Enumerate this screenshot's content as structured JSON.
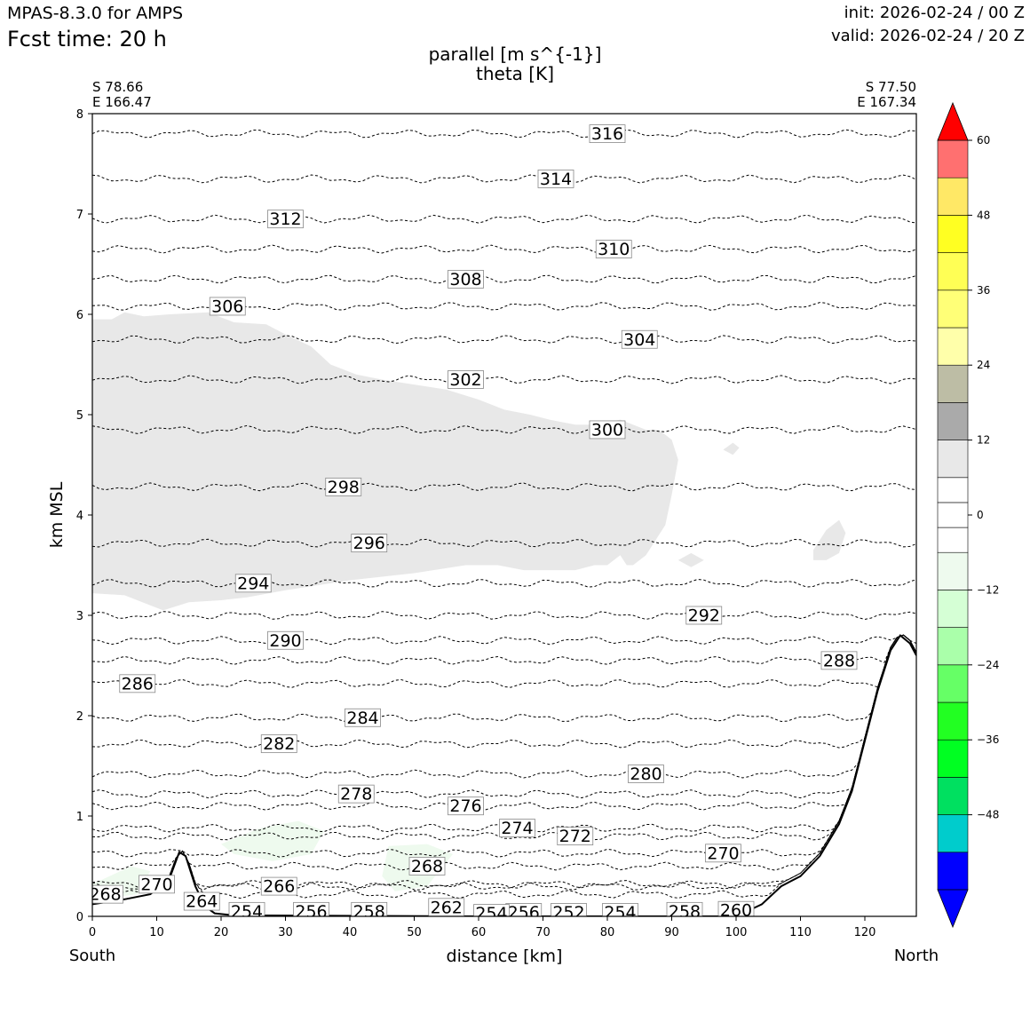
{
  "header": {
    "model": "MPAS-8.3.0 for AMPS",
    "fcst_time": "Fcst time:   20 h",
    "init": "init: 2026-02-24 / 00 Z",
    "valid": "valid: 2026-02-24 / 20 Z",
    "title_line1": "parallel [m s^{-1}]",
    "title_line2": "theta [K]"
  },
  "colors": {
    "frame": "#000000",
    "shading_light": "#e8e8e8",
    "shading_neg": "#eefaee",
    "terrain": "#000000"
  },
  "chart_data": {
    "type": "contour",
    "xlabel": "distance [km]",
    "ylabel": "km MSL",
    "xlim": [
      0,
      128
    ],
    "ylim": [
      0,
      8
    ],
    "x_ticks": [
      0,
      10,
      20,
      30,
      40,
      50,
      60,
      70,
      80,
      90,
      100,
      110,
      120
    ],
    "y_ticks": [
      0,
      1,
      2,
      3,
      4,
      5,
      6,
      7,
      8
    ],
    "left_end": {
      "lat": "S 78.66",
      "lon": "E 166.47",
      "side": "South"
    },
    "right_end": {
      "lat": "S 77.50",
      "lon": "E 167.34",
      "side": "North"
    },
    "colorbar": {
      "ticks": [
        60,
        48,
        36,
        24,
        12,
        0,
        -12,
        -24,
        -36,
        -48
      ],
      "tick_labels": [
        "60",
        "48",
        "36",
        "24",
        "12",
        "0",
        "−12",
        "−24",
        "−36",
        "−48"
      ],
      "levels": [
        -60,
        -54,
        -48,
        -42,
        -36,
        -30,
        -24,
        -18,
        -12,
        -6,
        -2,
        2,
        6,
        12,
        18,
        24,
        30,
        36,
        42,
        48,
        54,
        60
      ],
      "colors": [
        "#0000ff",
        "#00cccc",
        "#00e060",
        "#00ff22",
        "#22ff22",
        "#66ff66",
        "#aaffaa",
        "#d5ffd5",
        "#eefaee",
        "#ffffff",
        "#ffffff",
        "#ffffff",
        "#e8e8e8",
        "#aaaaaa",
        "#bdbda5",
        "#ffffaa",
        "#ffff77",
        "#ffff55",
        "#ffff22",
        "#ffe866",
        "#ff7070",
        "#ff0000"
      ],
      "under_color": "#0000ff",
      "over_color": "#ff0000"
    },
    "terrain": [
      [
        0,
        0.12
      ],
      [
        5,
        0.17
      ],
      [
        9,
        0.22
      ],
      [
        12,
        0.38
      ],
      [
        13.5,
        0.64
      ],
      [
        14.5,
        0.6
      ],
      [
        16,
        0.3
      ],
      [
        17.5,
        0.1
      ],
      [
        19,
        0.03
      ],
      [
        22,
        0.01
      ],
      [
        60,
        0.0
      ],
      [
        100,
        0.0
      ],
      [
        104,
        0.12
      ],
      [
        107,
        0.3
      ],
      [
        110,
        0.4
      ],
      [
        113,
        0.6
      ],
      [
        116,
        0.92
      ],
      [
        118,
        1.25
      ],
      [
        120,
        1.75
      ],
      [
        122,
        2.25
      ],
      [
        124,
        2.65
      ],
      [
        125.5,
        2.8
      ],
      [
        127,
        2.72
      ],
      [
        128,
        2.6
      ]
    ],
    "shaded_regions": [
      {
        "range": "6 to 12",
        "polygon": [
          [
            0,
            5.95
          ],
          [
            3,
            5.95
          ],
          [
            5,
            6.02
          ],
          [
            8,
            5.98
          ],
          [
            12,
            6.0
          ],
          [
            18,
            6.02
          ],
          [
            22,
            5.92
          ],
          [
            27,
            5.9
          ],
          [
            30,
            5.8
          ],
          [
            34,
            5.68
          ],
          [
            37,
            5.5
          ],
          [
            41,
            5.4
          ],
          [
            45,
            5.35
          ],
          [
            50,
            5.3
          ],
          [
            55,
            5.25
          ],
          [
            60,
            5.15
          ],
          [
            64,
            5.05
          ],
          [
            68,
            5.0
          ],
          [
            71,
            4.95
          ],
          [
            75,
            4.9
          ],
          [
            78,
            4.9
          ],
          [
            82,
            4.95
          ],
          [
            86,
            4.85
          ],
          [
            88,
            4.85
          ],
          [
            90,
            4.75
          ],
          [
            91,
            4.55
          ],
          [
            90,
            4.2
          ],
          [
            89,
            3.9
          ],
          [
            87,
            3.7
          ],
          [
            86,
            3.6
          ],
          [
            84,
            3.5
          ],
          [
            83,
            3.5
          ],
          [
            82,
            3.6
          ],
          [
            80,
            3.5
          ],
          [
            78,
            3.5
          ],
          [
            75,
            3.45
          ],
          [
            72,
            3.45
          ],
          [
            67,
            3.45
          ],
          [
            63,
            3.5
          ],
          [
            58,
            3.5
          ],
          [
            50,
            3.42
          ],
          [
            40,
            3.35
          ],
          [
            30,
            3.25
          ],
          [
            24,
            3.18
          ],
          [
            20,
            3.15
          ],
          [
            15,
            3.13
          ],
          [
            11,
            3.05
          ],
          [
            9,
            3.1
          ],
          [
            5,
            3.2
          ],
          [
            0,
            3.22
          ]
        ]
      },
      {
        "range": "6 to 12",
        "polygon": [
          [
            112,
            3.65
          ],
          [
            114,
            3.85
          ],
          [
            116,
            3.95
          ],
          [
            117,
            3.82
          ],
          [
            116,
            3.62
          ],
          [
            114,
            3.55
          ],
          [
            112,
            3.55
          ]
        ]
      },
      {
        "range": "6 to 12",
        "polygon": [
          [
            98,
            4.65
          ],
          [
            99.5,
            4.72
          ],
          [
            100.5,
            4.67
          ],
          [
            99.5,
            4.6
          ]
        ]
      },
      {
        "range": "6 to 12",
        "polygon": [
          [
            91,
            3.55
          ],
          [
            93,
            3.62
          ],
          [
            95,
            3.55
          ],
          [
            93,
            3.48
          ]
        ]
      },
      {
        "range": "-12 to -6",
        "polygon": [
          [
            20,
            0.72
          ],
          [
            26,
            0.88
          ],
          [
            32,
            0.95
          ],
          [
            36,
            0.85
          ],
          [
            34,
            0.62
          ],
          [
            28,
            0.55
          ],
          [
            22,
            0.62
          ]
        ]
      },
      {
        "range": "-12 to -6",
        "polygon": [
          [
            46,
            0.7
          ],
          [
            52,
            0.72
          ],
          [
            56,
            0.62
          ],
          [
            52,
            0.3
          ],
          [
            47,
            0.25
          ],
          [
            45,
            0.4
          ]
        ]
      },
      {
        "range": "-12 to -6",
        "polygon": [
          [
            0,
            0.32
          ],
          [
            6,
            0.5
          ],
          [
            9,
            0.45
          ],
          [
            7,
            0.22
          ],
          [
            2,
            0.18
          ],
          [
            0,
            0.2
          ]
        ]
      }
    ],
    "contours": [
      {
        "value": 316,
        "y": 7.8,
        "label_x": 80
      },
      {
        "value": 314,
        "y": 7.35,
        "label_x": 72
      },
      {
        "value": 312,
        "y": 6.95,
        "label_x": 30
      },
      {
        "value": 310,
        "y": 6.65,
        "label_x": 81
      },
      {
        "value": 308,
        "y": 6.35,
        "label_x": 58
      },
      {
        "value": 306,
        "y": 6.08,
        "label_x": 21
      },
      {
        "value": 304,
        "y": 5.75,
        "label_x": 85
      },
      {
        "value": 302,
        "y": 5.35,
        "label_x": 58
      },
      {
        "value": 300,
        "y": 4.85,
        "label_x": 80
      },
      {
        "value": 298,
        "y": 4.28,
        "label_x": 39
      },
      {
        "value": 296,
        "y": 3.72,
        "label_x": 43
      },
      {
        "value": 294,
        "y": 3.32,
        "label_x": 25
      },
      {
        "value": 292,
        "y": 3.0,
        "label_x": 95
      },
      {
        "value": 290,
        "y": 2.75,
        "label_x": 30
      },
      {
        "value": 288,
        "y": 2.55,
        "label_x": 116
      },
      {
        "value": 286,
        "y": 2.32,
        "label_x": 7
      },
      {
        "value": 284,
        "y": 1.98,
        "label_x": 42
      },
      {
        "value": 282,
        "y": 1.72,
        "label_x": 29
      },
      {
        "value": 280,
        "y": 1.42,
        "label_x": 86
      },
      {
        "value": 278,
        "y": 1.22,
        "label_x": 41
      },
      {
        "value": 276,
        "y": 1.1,
        "label_x": 58
      },
      {
        "value": 274,
        "y": 0.88,
        "label_x": 66
      },
      {
        "value": 272,
        "y": 0.8,
        "label_x": 75
      },
      {
        "value": 270,
        "y": 0.63,
        "label_x": 98
      },
      {
        "value": 268,
        "y": 0.5,
        "label_x": 52
      },
      {
        "value": 268,
        "y": 0.22,
        "label_x": 2
      },
      {
        "value": 270,
        "y": 0.32,
        "label_x": 10
      },
      {
        "value": 266,
        "y": 0.3,
        "label_x": 29
      },
      {
        "value": 264,
        "y": 0.15,
        "label_x": 17
      },
      {
        "value": 262,
        "y": 0.09,
        "label_x": 55
      },
      {
        "value": 260,
        "y": 0.06,
        "label_x": 100
      },
      {
        "value": 258,
        "y": 0.05,
        "label_x": 43
      },
      {
        "value": 258,
        "y": 0.05,
        "label_x": 92
      },
      {
        "value": 256,
        "y": 0.05,
        "label_x": 34
      },
      {
        "value": 256,
        "y": 0.04,
        "label_x": 67
      },
      {
        "value": 254,
        "y": 0.05,
        "label_x": 24
      },
      {
        "value": 254,
        "y": 0.04,
        "label_x": 82
      },
      {
        "value": 252,
        "y": 0.04,
        "label_x": 74
      },
      {
        "value": 254,
        "y": 0.03,
        "label_x": 62
      }
    ]
  }
}
